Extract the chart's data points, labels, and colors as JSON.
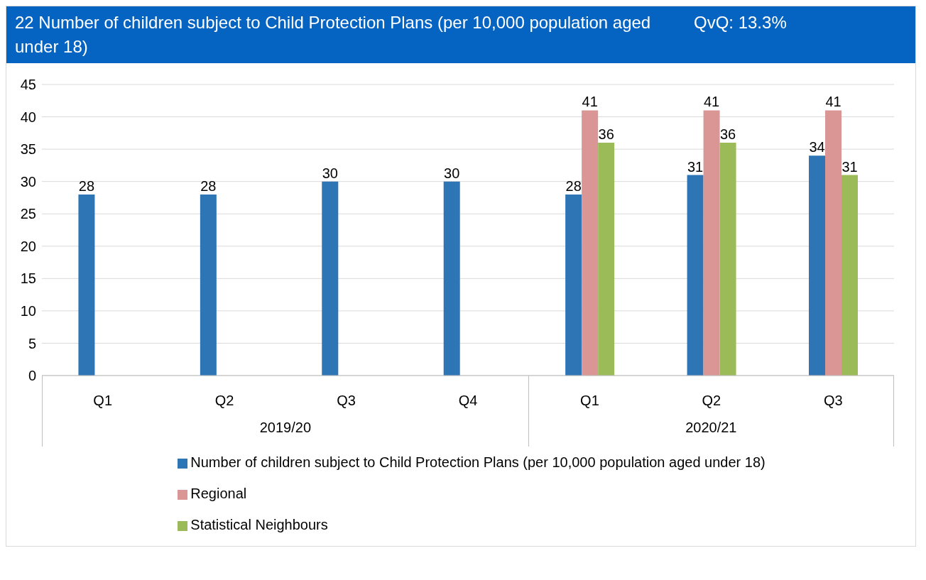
{
  "chart_data": {
    "type": "bar",
    "title": "22   Number of children subject to Child Protection Plans (per 10,000 population aged under 18)",
    "subtitle": "QvQ: 13.3%",
    "categories": [
      "Q1",
      "Q2",
      "Q3",
      "Q4",
      "Q1",
      "Q2",
      "Q3"
    ],
    "annotations": [
      "2019/20",
      "2020/21"
    ],
    "series": [
      {
        "name": "Number of children subject to Child Protection Plans (per 10,000 population aged under 18)",
        "color": "#2e75b6",
        "values": [
          28,
          28,
          30,
          30,
          28,
          31,
          34
        ]
      },
      {
        "name": "Regional",
        "color": "#d99694",
        "values": [
          null,
          null,
          null,
          null,
          41,
          41,
          41
        ]
      },
      {
        "name": "Statistical Neighbours",
        "color": "#9bbb59",
        "values": [
          null,
          null,
          null,
          null,
          36,
          36,
          31
        ]
      }
    ],
    "ylim": [
      0,
      45
    ],
    "yticks": [
      0,
      5,
      10,
      15,
      20,
      25,
      30,
      35,
      40,
      45
    ],
    "grid": "y",
    "legend": "bottom",
    "data_labels": true
  }
}
